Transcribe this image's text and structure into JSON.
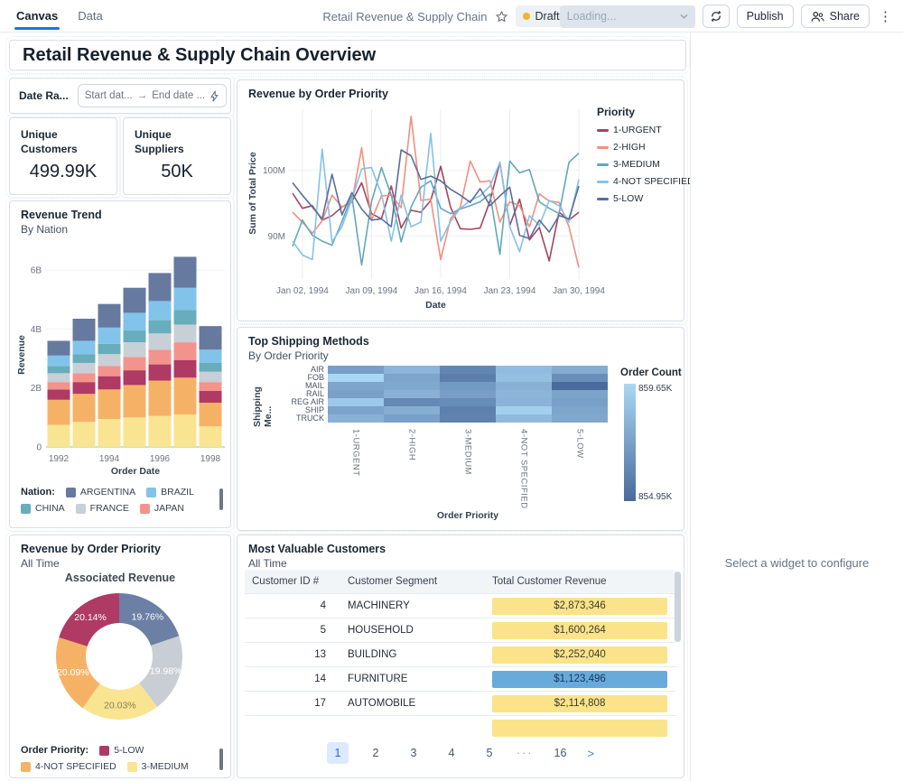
{
  "header": {
    "tabs": [
      {
        "label": "Canvas",
        "active": true
      },
      {
        "label": "Data",
        "active": false
      }
    ],
    "doc_title": "Retail Revenue & Supply Chain",
    "status_badge": "Draft",
    "loading_dropdown": "Loading...",
    "publish_button": "Publish",
    "share_button": "Share"
  },
  "page": {
    "title": "Retail Revenue & Supply Chain Overview"
  },
  "filters": {
    "date_range": {
      "label": "Date Ra...",
      "start_placeholder": "Start dat...",
      "arrow": "→",
      "end_placeholder": "End date ..."
    }
  },
  "kpis": [
    {
      "label": "Unique Customers",
      "value": "499.99K"
    },
    {
      "label": "Unique Suppliers",
      "value": "50K"
    }
  ],
  "right_panel": {
    "placeholder": "Select a widget to configure"
  },
  "colors": {
    "accent_blue": "#1a73e8",
    "draft_dot": "#f0b42a"
  },
  "chart_data": [
    {
      "id": "priority_line",
      "type": "line",
      "title": "Revenue by Order Priority",
      "xlabel": "Date",
      "ylabel": "Sum of Total Price",
      "x_ticks": [
        "Jan 02, 1994",
        "Jan 09, 1994",
        "Jan 16, 1994",
        "Jan 23, 1994",
        "Jan 30, 1994"
      ],
      "x_tick_indices": [
        1,
        8,
        15,
        22,
        29
      ],
      "y_ticks": [
        {
          "label": "90M",
          "value": 90
        },
        {
          "label": "100M",
          "value": 100
        }
      ],
      "ylim_millions": [
        84,
        109
      ],
      "legend_title": "Priority",
      "series": [
        {
          "name": "1-URGENT",
          "color": "#a4445f",
          "values": [
            96.5,
            94.2,
            94.6,
            92.4,
            93.1,
            94.4,
            95.2,
            98.1,
            93.4,
            92.6,
            97.6,
            91.2,
            93.9,
            93.6,
            95.4,
            100.6,
            94.4,
            91.1,
            91.0,
            91.2,
            95.3,
            101.2,
            91.6,
            95.6,
            89.4,
            91.3,
            86.2,
            93.6,
            92.4,
            93.6
          ]
        },
        {
          "name": "2-HIGH",
          "color": "#f0907f",
          "values": [
            93.6,
            92.1,
            90.4,
            92.3,
            96.2,
            94.4,
            95.1,
            103.4,
            92.4,
            96.1,
            96.2,
            94.3,
            108.2,
            95.4,
            95.6,
            86.4,
            92.6,
            94.4,
            101.4,
            98.2,
            98.4,
            92.1,
            95.2,
            94.6,
            91.4,
            96.4,
            95.3,
            95.1,
            91.4,
            85.2
          ]
        },
        {
          "name": "3-MEDIUM",
          "color": "#62a8b8",
          "values": [
            88.4,
            92.4,
            90.1,
            89.2,
            88.6,
            92.2,
            96.1,
            85.6,
            95.2,
            100.4,
            96.2,
            89.1,
            94.4,
            97.4,
            98.4,
            94.2,
            93.4,
            94.1,
            94.6,
            95.2,
            96.4,
            87.2,
            101.4,
            99.6,
            100.1,
            95.2,
            94.2,
            93.4,
            101.2,
            102.6
          ]
        },
        {
          "name": "4-NOT SPECIFIED",
          "color": "#85c1e8",
          "values": [
            89.2,
            87.1,
            86.4,
            103.2,
            89.1,
            91.4,
            95.6,
            100.2,
            100.4,
            96.4,
            89.2,
            96.2,
            91.4,
            92.1,
            105.6,
            89.2,
            92.2,
            94.2,
            95.4,
            96.1,
            97.6,
            101.2,
            91.4,
            87.6,
            93.1,
            91.6,
            95.4,
            94.6,
            92.1,
            98.6
          ]
        },
        {
          "name": "5-LOW",
          "color": "#5a6e9e",
          "values": [
            98.1,
            96.2,
            94.4,
            92.6,
            99.4,
            93.2,
            96.6,
            94.1,
            92.4,
            92.6,
            91.4,
            103.1,
            102.2,
            98.6,
            99.1,
            98.4,
            97.1,
            96.2,
            95.1,
            97.2,
            94.6,
            96.1,
            97.4,
            90.1,
            89.6,
            92.4,
            90.6,
            93.1,
            92.6,
            97.6
          ]
        }
      ]
    },
    {
      "id": "revenue_trend",
      "type": "bar",
      "stacked": true,
      "title": "Revenue Trend",
      "subtitle": "By Nation",
      "xlabel": "Order Date",
      "ylabel": "Revenue",
      "categories": [
        "1992",
        "1993",
        "1994",
        "1995",
        "1996",
        "1997",
        "1998"
      ],
      "x_ticks": [
        "1992",
        "1994",
        "1996",
        "1998"
      ],
      "x_tick_indices": [
        0,
        2,
        4,
        6
      ],
      "y_ticks": [
        {
          "label": "0",
          "value": 0
        },
        {
          "label": "2B",
          "value": 2
        },
        {
          "label": "4B",
          "value": 4
        },
        {
          "label": "6B",
          "value": 6
        }
      ],
      "ylim_billions": [
        0,
        6.8
      ],
      "legend_label": "Nation:",
      "legend": [
        {
          "name": "ARGENTINA",
          "color": "#66799e"
        },
        {
          "name": "BRAZIL",
          "color": "#82c3ea"
        },
        {
          "name": "CHINA",
          "color": "#68adbb"
        },
        {
          "name": "FRANCE",
          "color": "#c9cfd6"
        },
        {
          "name": "JAPAN",
          "color": "#f2948b"
        }
      ],
      "series": [
        {
          "name": "",
          "color": "#f9e491",
          "values": [
            0.75,
            0.85,
            0.95,
            1.0,
            1.05,
            1.1,
            0.7
          ]
        },
        {
          "name": "",
          "color": "#f5b266",
          "values": [
            0.85,
            0.95,
            1.0,
            1.1,
            1.2,
            1.25,
            0.8
          ]
        },
        {
          "name": "",
          "color": "#af3a64",
          "values": [
            0.35,
            0.4,
            0.45,
            0.5,
            0.55,
            0.6,
            0.4
          ]
        },
        {
          "name": "JAPAN",
          "color": "#f2948b",
          "values": [
            0.25,
            0.3,
            0.35,
            0.45,
            0.5,
            0.6,
            0.3
          ]
        },
        {
          "name": "FRANCE",
          "color": "#c9cfd6",
          "values": [
            0.3,
            0.35,
            0.4,
            0.5,
            0.55,
            0.6,
            0.35
          ]
        },
        {
          "name": "CHINA",
          "color": "#68adbb",
          "values": [
            0.25,
            0.3,
            0.35,
            0.4,
            0.45,
            0.5,
            0.3
          ]
        },
        {
          "name": "BRAZIL",
          "color": "#82c3ea",
          "values": [
            0.35,
            0.45,
            0.55,
            0.6,
            0.65,
            0.75,
            0.45
          ]
        },
        {
          "name": "ARGENTINA",
          "color": "#66799e",
          "values": [
            0.5,
            0.75,
            0.8,
            0.85,
            0.95,
            1.05,
            0.8
          ]
        }
      ]
    },
    {
      "id": "shipping_heatmap",
      "type": "heatmap",
      "title": "Top Shipping Methods",
      "subtitle": "By Order Priority",
      "xlabel": "Order Priority",
      "ylabel": "Shipping Me...",
      "rows": [
        "AIR",
        "FOB",
        "MAIL",
        "RAIL",
        "REG AIR",
        "SHIP",
        "TRUCK"
      ],
      "cols": [
        "1-URGENT",
        "2-HIGH",
        "3-MEDIUM",
        "4-NOT SPECIFIED",
        "5-LOW"
      ],
      "values_thousands": [
        [
          857.2,
          858.2,
          856.2,
          858.5,
          857.8
        ],
        [
          859.6,
          857.5,
          855.8,
          858.6,
          856.5
        ],
        [
          857.5,
          857.6,
          857.0,
          858.0,
          855.0
        ],
        [
          857.3,
          858.0,
          857.2,
          858.2,
          857.4
        ],
        [
          859.0,
          856.3,
          856.4,
          858.1,
          857.3
        ],
        [
          857.4,
          857.9,
          855.9,
          859.3,
          857.5
        ],
        [
          858.0,
          857.3,
          856.0,
          858.4,
          857.6
        ]
      ],
      "legend": {
        "title": "Order Count",
        "max_label": "859.65K",
        "min_label": "854.95K",
        "min": 854.95,
        "max": 859.65,
        "light_color": "#a9d7f5",
        "dark_color": "#4a6a9b"
      }
    },
    {
      "id": "priority_donut",
      "type": "pie",
      "title": "Revenue by Order Priority",
      "subtitle": "All Time",
      "chart_title": "Associated Revenue",
      "slices": [
        {
          "name": "",
          "pct": 19.76,
          "color": "#6b80a4",
          "label": "19.76%",
          "label_color": "#ffffff"
        },
        {
          "name": "",
          "pct": 19.98,
          "color": "#c9ced4",
          "label": "19.98%",
          "label_color": "#ffffff"
        },
        {
          "name": "3-MEDIUM",
          "pct": 20.03,
          "color": "#f9e491",
          "label": "20.03%",
          "label_color": "#857f63"
        },
        {
          "name": "4-NOT SPECIFIED",
          "pct": 20.09,
          "color": "#f5b266",
          "label": "20.09%",
          "label_color": "#ffffff"
        },
        {
          "name": "5-LOW",
          "pct": 20.14,
          "color": "#af3a64",
          "label": "20.14%",
          "label_color": "#ffffff"
        }
      ],
      "legend_label": "Order Priority:",
      "legend": [
        {
          "name": "5-LOW",
          "color": "#af3a64"
        },
        {
          "name": "4-NOT SPECIFIED",
          "color": "#f5b266"
        },
        {
          "name": "3-MEDIUM",
          "color": "#f9e491"
        }
      ]
    },
    {
      "id": "top_customers",
      "type": "table",
      "title": "Most Valuable Customers",
      "subtitle": "All Time",
      "columns": [
        "Customer ID #",
        "Customer Segment",
        "Total Customer Revenue"
      ],
      "rows": [
        {
          "customer_id": "4",
          "segment": "MACHINERY",
          "revenue": "$2,873,346",
          "highlight": "yellow"
        },
        {
          "customer_id": "5",
          "segment": "HOUSEHOLD",
          "revenue": "$1,600,264",
          "highlight": "yellow"
        },
        {
          "customer_id": "13",
          "segment": "BUILDING",
          "revenue": "$2,252,040",
          "highlight": "yellow"
        },
        {
          "customer_id": "14",
          "segment": "FURNITURE",
          "revenue": "$1,123,496",
          "highlight": "blue"
        },
        {
          "customer_id": "17",
          "segment": "AUTOMOBILE",
          "revenue": "$2,114,808",
          "highlight": "yellow"
        },
        {
          "customer_id": "",
          "segment": "",
          "revenue": "",
          "highlight": "yellow",
          "partial": true
        }
      ],
      "highlight_colors": {
        "yellow": "#fbe38a",
        "blue": "#68abdb"
      },
      "highlight_text_colors": {
        "yellow": "#3f3c2c",
        "blue": "#13365e"
      },
      "pagination": {
        "pages": [
          "1",
          "2",
          "3",
          "4",
          "5",
          "···",
          "16"
        ],
        "active": "1",
        "next_label": ">"
      }
    }
  ]
}
